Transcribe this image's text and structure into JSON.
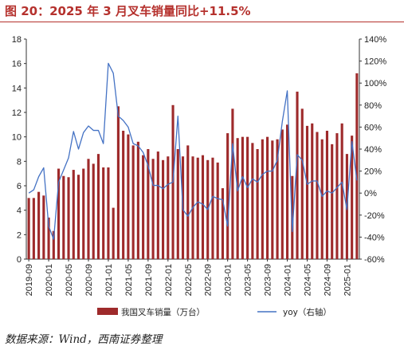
{
  "chart_data": {
    "type": "bar+line",
    "title": "图 20：2025 年 3 月叉车销量同比+11.5%",
    "x": [
      "2019-09",
      "2019-10",
      "2019-11",
      "2019-12",
      "2020-01",
      "2020-02",
      "2020-03",
      "2020-04",
      "2020-05",
      "2020-06",
      "2020-07",
      "2020-08",
      "2020-09",
      "2020-10",
      "2020-11",
      "2020-12",
      "2021-01",
      "2021-02",
      "2021-03",
      "2021-04",
      "2021-05",
      "2021-06",
      "2021-07",
      "2021-08",
      "2021-09",
      "2021-10",
      "2021-11",
      "2021-12",
      "2022-01",
      "2022-02",
      "2022-03",
      "2022-04",
      "2022-05",
      "2022-06",
      "2022-07",
      "2022-08",
      "2022-09",
      "2022-10",
      "2022-11",
      "2022-12",
      "2023-01",
      "2023-02",
      "2023-03",
      "2023-04",
      "2023-05",
      "2023-06",
      "2023-07",
      "2023-08",
      "2023-09",
      "2023-10",
      "2023-11",
      "2023-12",
      "2024-01",
      "2024-02",
      "2024-03",
      "2024-04",
      "2024-05",
      "2024-06",
      "2024-07",
      "2024-08",
      "2024-09",
      "2024-10",
      "2024-11",
      "2024-12",
      "2025-01",
      "2025-02",
      "2025-03"
    ],
    "x_tick_labels": [
      "2019-09",
      "2020-01",
      "2020-05",
      "2020-09",
      "2021-01",
      "2021-05",
      "2021-09",
      "2022-01",
      "2022-05",
      "2022-09",
      "2023-01",
      "2023-05",
      "2023-09",
      "2024-01",
      "2024-05",
      "2024-09",
      "2025-01"
    ],
    "left_axis": {
      "ylim": [
        0,
        18
      ],
      "ticks": [
        0,
        2,
        4,
        6,
        8,
        10,
        12,
        14,
        16,
        18
      ]
    },
    "right_axis": {
      "ylim": [
        -60,
        140
      ],
      "ticks": [
        "-60%",
        "-40%",
        "-20%",
        "0%",
        "20%",
        "40%",
        "60%",
        "80%",
        "100%",
        "120%",
        "140%"
      ]
    },
    "series": [
      {
        "name": "我国叉车销量（万台）",
        "type": "bar",
        "axis": "left",
        "color": "#9e2a2b",
        "values": [
          5.0,
          5.0,
          5.5,
          5.2,
          3.4,
          2.3,
          7.4,
          6.8,
          6.7,
          7.3,
          6.9,
          7.4,
          8.2,
          7.8,
          8.6,
          7.5,
          7.5,
          4.2,
          12.5,
          10.5,
          10.2,
          9.3,
          9.6,
          8.5,
          9.0,
          8.2,
          8.8,
          8.1,
          8.4,
          12.6,
          9.0,
          8.4,
          9.3,
          8.4,
          8.3,
          8.5,
          8.1,
          8.3,
          7.9,
          5.8,
          10.3,
          12.3,
          9.9,
          10.0,
          10.0,
          9.5,
          9.0,
          9.8,
          10.0,
          9.7,
          9.8,
          10.6,
          11.0,
          6.8,
          13.7,
          12.3,
          10.9,
          11.1,
          10.4,
          9.8,
          10.5,
          9.4,
          10.3,
          11.1,
          8.6,
          10.1,
          15.2
        ]
      },
      {
        "name": "yoy（右轴）",
        "type": "line",
        "axis": "right",
        "color": "#4472c4",
        "values": [
          0,
          3,
          15,
          23,
          -30,
          -42,
          10,
          21,
          32,
          56,
          40,
          55,
          61,
          57,
          57,
          45,
          118,
          109,
          70,
          66,
          60,
          45,
          43,
          37,
          25,
          7,
          7,
          4,
          8,
          10,
          70,
          -15,
          -21,
          -13,
          -8,
          -10,
          -15,
          -3,
          -5,
          -6,
          -30,
          45,
          2,
          15,
          5,
          13,
          10,
          17,
          20,
          20,
          30,
          65,
          93,
          -35,
          35,
          30,
          8,
          11,
          11,
          -3,
          2,
          0,
          5,
          10,
          -15,
          47,
          11.5
        ]
      }
    ],
    "legend_position": "bottom",
    "grid": false
  },
  "source": "数据来源：Wind，西南证券整理"
}
